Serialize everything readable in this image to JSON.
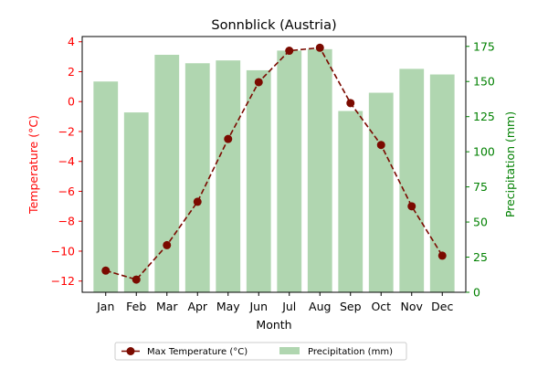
{
  "chart_data": {
    "type": "bar",
    "title": "Sonnblick (Austria)",
    "xlabel": "Month",
    "ylabel_left": "Temperature (°C)",
    "ylabel_right": "Precipitation (mm)",
    "categories": [
      "Jan",
      "Feb",
      "Mar",
      "Apr",
      "May",
      "Jun",
      "Jul",
      "Aug",
      "Sep",
      "Oct",
      "Nov",
      "Dec"
    ],
    "series": [
      {
        "name": "Precipitation (mm)",
        "type": "bar",
        "axis": "right",
        "color": "#b0d6b0",
        "values": [
          150,
          128,
          169,
          163,
          165,
          158,
          172,
          173,
          129,
          142,
          159,
          155
        ]
      },
      {
        "name": "Max Temperature (°C)",
        "type": "line",
        "axis": "left",
        "color": "#7b0a00",
        "line_style": "dashed",
        "marker": "circle",
        "values": [
          -11.3,
          -11.9,
          -9.6,
          -6.7,
          -2.5,
          1.3,
          3.4,
          3.6,
          -0.1,
          -2.9,
          -7.0,
          -10.3
        ]
      }
    ],
    "ylim_left": [
      -12.75,
      4.35
    ],
    "ylim_right": [
      0,
      182
    ],
    "yticks_left": [
      -12,
      -10,
      -8,
      -6,
      -4,
      -2,
      0,
      2,
      4
    ],
    "yticks_right": [
      0,
      25,
      50,
      75,
      100,
      125,
      150,
      175
    ],
    "left_axis_color": "#ff0000",
    "right_axis_color": "#008000",
    "grid": false,
    "legend_position": "bottom-center"
  }
}
